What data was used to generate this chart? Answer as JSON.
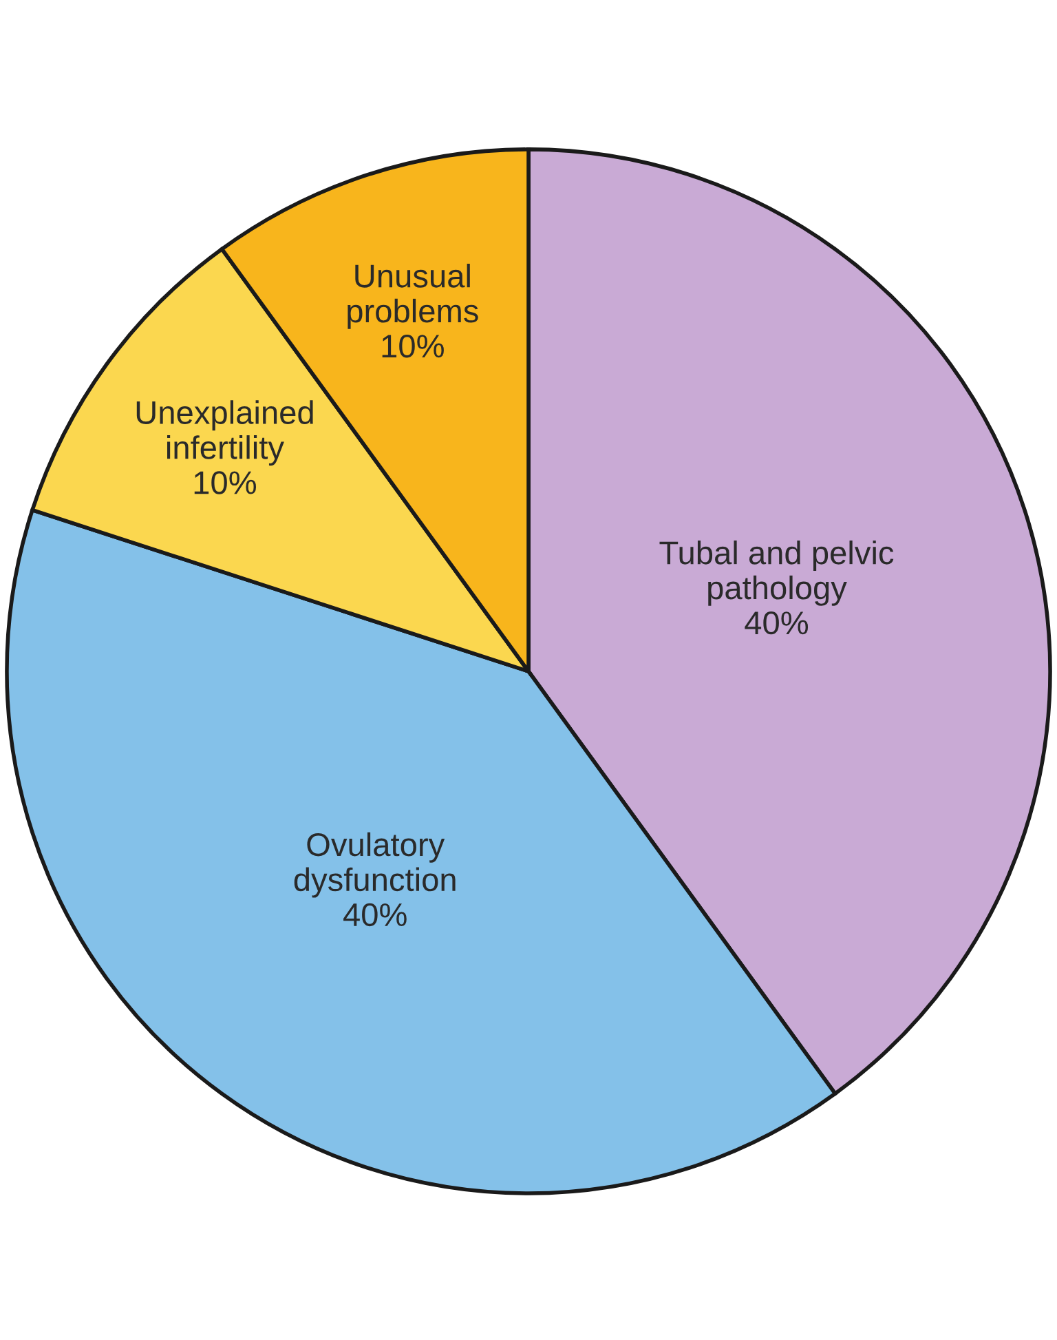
{
  "chart_data": {
    "type": "pie",
    "categories": [
      "Tubal and pelvic\npathology",
      "Ovulatory\ndysfunction",
      "Unexplained\ninfertility",
      "Unusual\nproblems"
    ],
    "values": [
      40,
      40,
      10,
      10
    ],
    "colors": [
      "#c9aad5",
      "#84c1e9",
      "#fbd74f",
      "#f8b51c"
    ],
    "value_labels": [
      "40%",
      "40%",
      "10%",
      "10%"
    ]
  }
}
